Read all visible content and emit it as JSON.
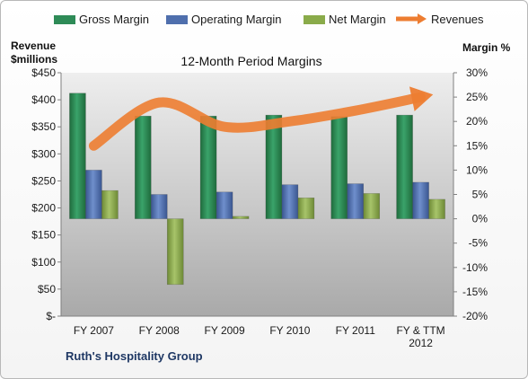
{
  "chart_data": {
    "type": "bar",
    "title": "12-Month Period Margins",
    "ylabel_left": "Revenue $millions",
    "ylabel_right": "Margin %",
    "categories": [
      "FY 2007",
      "FY 2008",
      "FY 2009",
      "FY 2010",
      "FY 2011",
      "FY & TTM 2012"
    ],
    "left_axis": {
      "min": 0,
      "max": 450,
      "ticks": [
        "$-",
        "$50",
        "$100",
        "$150",
        "$200",
        "$250",
        "$300",
        "$350",
        "$400",
        "$450"
      ]
    },
    "right_axis": {
      "min": -20,
      "max": 30,
      "ticks": [
        "-20%",
        "-15%",
        "-10%",
        "-5%",
        "0%",
        "5%",
        "10%",
        "15%",
        "20%",
        "25%",
        "30%"
      ]
    },
    "series": [
      {
        "name": "Gross Margin",
        "type": "bar",
        "axis": "right",
        "color": "#2e8b57",
        "values": [
          25.8,
          21.1,
          21.1,
          21.3,
          21.0,
          21.3
        ]
      },
      {
        "name": "Operating Margin",
        "type": "bar",
        "axis": "right",
        "color": "#4f6fad",
        "values": [
          10.0,
          5.0,
          5.5,
          7.0,
          7.2,
          7.5
        ]
      },
      {
        "name": "Net Margin",
        "type": "bar",
        "axis": "right",
        "color": "#8aab4a",
        "values": [
          5.8,
          -13.5,
          0.5,
          4.3,
          5.2,
          4.0
        ]
      },
      {
        "name": "Revenues",
        "type": "line",
        "axis": "left",
        "color": "#ed7d31",
        "values": [
          315,
          395,
          350,
          360,
          380,
          405
        ]
      }
    ],
    "grid": false,
    "legend_position": "top"
  },
  "footer_label": "Ruth's Hospitality Group"
}
